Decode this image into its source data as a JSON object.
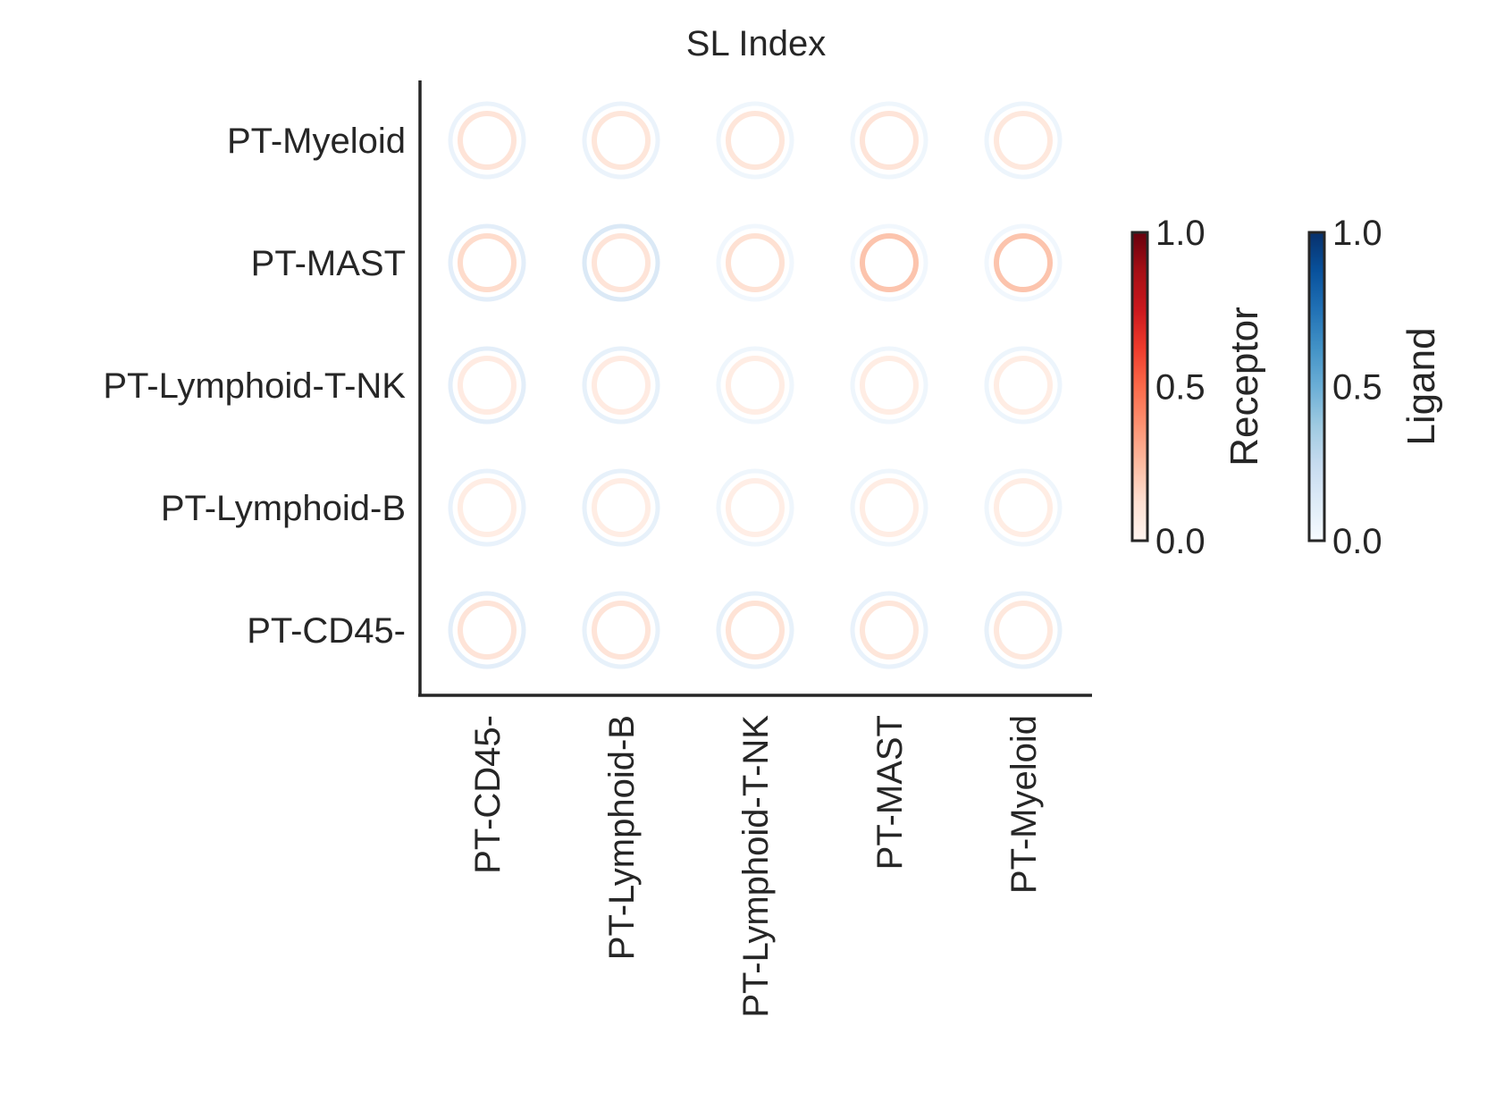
{
  "chart_data": {
    "type": "scatter",
    "title": "SL Index",
    "x_categories": [
      "PT-CD45-",
      "PT-Lymphoid-B",
      "PT-Lymphoid-T-NK",
      "PT-MAST",
      "PT-Myeloid"
    ],
    "y_categories": [
      "PT-Myeloid",
      "PT-MAST",
      "PT-Lymphoid-T-NK",
      "PT-Lymphoid-B",
      "PT-CD45-"
    ],
    "receptor": [
      [
        0.1,
        0.09,
        0.09,
        0.1,
        0.08
      ],
      [
        0.14,
        0.1,
        0.12,
        0.22,
        0.22
      ],
      [
        0.06,
        0.06,
        0.05,
        0.05,
        0.05
      ],
      [
        0.05,
        0.05,
        0.04,
        0.05,
        0.05
      ],
      [
        0.1,
        0.1,
        0.11,
        0.09,
        0.08
      ]
    ],
    "ligand": [
      [
        0.06,
        0.06,
        0.04,
        0.04,
        0.05
      ],
      [
        0.1,
        0.14,
        0.03,
        0.03,
        0.03
      ],
      [
        0.1,
        0.08,
        0.04,
        0.04,
        0.05
      ],
      [
        0.07,
        0.08,
        0.04,
        0.04,
        0.04
      ],
      [
        0.1,
        0.08,
        0.08,
        0.07,
        0.08
      ]
    ],
    "colorbars": [
      {
        "label": "Receptor",
        "cmap": "Reds",
        "ticks": [
          "0.0",
          "0.5",
          "1.0"
        ],
        "range": [
          0,
          1
        ]
      },
      {
        "label": "Ligand",
        "cmap": "Blues",
        "ticks": [
          "0.0",
          "0.5",
          "1.0"
        ],
        "range": [
          0,
          1
        ]
      }
    ]
  }
}
